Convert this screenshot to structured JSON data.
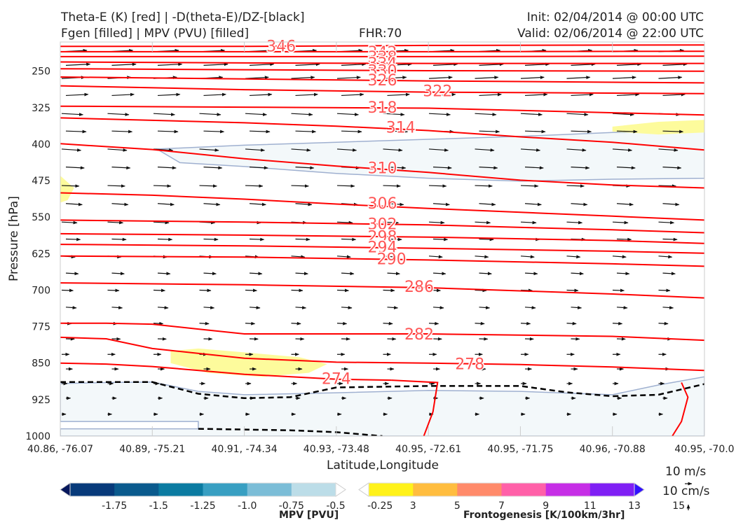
{
  "header": {
    "title_left_1": "Theta-E (K) [red] | -D(theta-E)/DZ-[black]",
    "title_left_2": "Fgen [filled] | MPV (PVU) [filled]",
    "fhr": "FHR:70",
    "init": "Init: 02/04/2014 @ 00:00 UTC",
    "valid": "Valid: 02/06/2014 @ 22:00 UTC"
  },
  "chart_data": {
    "type": "cross-section",
    "xlabel": "Latitude,Longitude",
    "ylabel": "Pressure [hPa]",
    "x_ticks": [
      "40.86, -76.07",
      "40.89, -75.21",
      "40.91, -74.34",
      "40.93, -73.48",
      "40.95, -72.61",
      "40.95, -71.75",
      "40.96, -70.88",
      "40.95, -70.0"
    ],
    "y_ticks": [
      250,
      325,
      400,
      475,
      550,
      625,
      700,
      775,
      850,
      925,
      1000
    ],
    "ylim": [
      190,
      1000
    ],
    "xlim": [
      0,
      7
    ],
    "theta_e_contours": [
      {
        "label": "346",
        "points": [
          [
            0,
            199
          ],
          [
            2,
            199
          ],
          [
            4,
            197
          ],
          [
            7,
            196
          ]
        ]
      },
      {
        "label": "342",
        "points": [
          [
            0,
            210
          ],
          [
            2,
            210
          ],
          [
            4,
            210
          ],
          [
            7,
            209
          ]
        ]
      },
      {
        "label": "338",
        "points": [
          [
            0,
            220
          ],
          [
            2,
            220
          ],
          [
            4,
            220
          ],
          [
            7,
            219
          ]
        ]
      },
      {
        "label": "334",
        "points": [
          [
            0,
            231
          ],
          [
            2,
            233
          ],
          [
            4,
            234
          ],
          [
            7,
            234
          ]
        ]
      },
      {
        "label": "330",
        "points": [
          [
            0,
            245
          ],
          [
            2,
            247
          ],
          [
            4,
            249
          ],
          [
            7,
            250
          ]
        ]
      },
      {
        "label": "326",
        "points": [
          [
            0,
            262
          ],
          [
            2,
            266
          ],
          [
            4,
            270
          ],
          [
            7,
            274
          ]
        ]
      },
      {
        "label": "322",
        "points": [
          [
            0,
            280
          ],
          [
            2,
            288
          ],
          [
            4,
            293
          ],
          [
            7,
            296
          ]
        ]
      },
      {
        "label": "318",
        "points": [
          [
            0,
            322
          ],
          [
            2,
            324
          ],
          [
            4,
            326
          ],
          [
            7,
            340
          ]
        ]
      },
      {
        "label": "314",
        "points": [
          [
            0,
            346
          ],
          [
            1,
            351
          ],
          [
            2,
            356
          ],
          [
            3,
            363
          ],
          [
            4,
            372
          ],
          [
            5,
            385
          ],
          [
            6,
            396
          ],
          [
            7,
            412
          ]
        ]
      },
      {
        "label": "310",
        "points": [
          [
            0,
            399
          ],
          [
            1,
            411
          ],
          [
            2,
            430
          ],
          [
            3,
            445
          ],
          [
            4,
            458
          ],
          [
            5,
            474
          ],
          [
            6,
            484
          ],
          [
            7,
            490
          ]
        ]
      },
      {
        "label": "306",
        "points": [
          [
            0,
            500
          ],
          [
            1,
            505
          ],
          [
            2,
            513
          ],
          [
            3,
            523
          ],
          [
            4,
            532
          ],
          [
            5,
            540
          ],
          [
            6,
            548
          ],
          [
            7,
            556
          ]
        ]
      },
      {
        "label": "302",
        "points": [
          [
            0,
            556
          ],
          [
            2,
            560
          ],
          [
            4,
            566
          ],
          [
            6,
            576
          ],
          [
            7,
            582
          ]
        ]
      },
      {
        "label": "298",
        "points": [
          [
            0,
            584
          ],
          [
            2,
            587
          ],
          [
            4,
            591
          ],
          [
            6,
            598
          ],
          [
            7,
            604
          ]
        ]
      },
      {
        "label": "294",
        "points": [
          [
            0,
            606
          ],
          [
            2,
            609
          ],
          [
            4,
            614
          ],
          [
            6,
            620
          ],
          [
            7,
            624
          ]
        ]
      },
      {
        "label": "290",
        "points": [
          [
            0,
            630
          ],
          [
            2,
            632
          ],
          [
            4,
            638
          ],
          [
            6,
            646
          ],
          [
            7,
            651
          ]
        ]
      },
      {
        "label": "286",
        "points": [
          [
            0,
            685
          ],
          [
            2,
            689
          ],
          [
            4,
            695
          ],
          [
            6,
            708
          ],
          [
            7,
            716
          ]
        ]
      },
      {
        "label": "282",
        "points": [
          [
            0,
            768
          ],
          [
            0.5,
            768
          ],
          [
            1,
            770
          ],
          [
            1.5,
            780
          ],
          [
            2,
            790
          ],
          [
            4,
            790
          ],
          [
            6,
            795
          ],
          [
            7,
            803
          ]
        ]
      },
      {
        "label": "278",
        "points": [
          [
            0,
            797
          ],
          [
            0.5,
            800
          ],
          [
            1,
            820
          ],
          [
            2,
            840
          ],
          [
            3,
            848
          ],
          [
            4,
            850
          ],
          [
            5,
            853
          ],
          [
            6,
            858
          ],
          [
            7,
            865
          ]
        ]
      },
      {
        "label": "274",
        "points": [
          [
            0,
            850
          ],
          [
            0.5,
            852
          ],
          [
            1,
            857
          ],
          [
            2,
            873
          ],
          [
            3,
            883
          ],
          [
            3.6,
            885
          ]
        ]
      }
    ],
    "fgen_filled": {
      "levels": [
        3,
        5,
        7,
        9,
        11,
        13,
        15
      ],
      "colors": [
        "#ffffff",
        "#fff21a",
        "#ffbd3f",
        "#ff8a6a",
        "#ff60a8",
        "#c62ee6",
        "#7f1ff4",
        "#3212ff"
      ]
    },
    "mpv_filled": {
      "levels": [
        -1.75,
        -1.5,
        -1.25,
        -1.0,
        -0.75,
        -0.5,
        -0.25
      ],
      "colors": [
        "#06175c",
        "#073a7a",
        "#0a5a8d",
        "#0b7ba1",
        "#389fc2",
        "#7bbdd7",
        "#bcdde8",
        "#ffffff"
      ]
    },
    "colorbars": {
      "mpv": {
        "title": "MPV [PVU]",
        "ticks": [
          "-1.75",
          "-1.5",
          "-1.25",
          "-1.0",
          "-0.75",
          "-0.5",
          "-0.25"
        ]
      },
      "fgen": {
        "title": "Frontogenesis [K/100km/3hr]",
        "ticks": [
          "3",
          "5",
          "7",
          "9",
          "11",
          "13",
          "15"
        ]
      }
    },
    "vector_scale": {
      "speed": "10 m/s",
      "vertical": "10 cm/s"
    },
    "colors": {
      "theta_e": "#ff0000",
      "contour_label": "#ff5555",
      "stability": "#000000",
      "mpv_outline": "#9fb0d0",
      "mpv_fill": "#f3f8fa",
      "fgen_fill": "#fdfb9c"
    }
  }
}
